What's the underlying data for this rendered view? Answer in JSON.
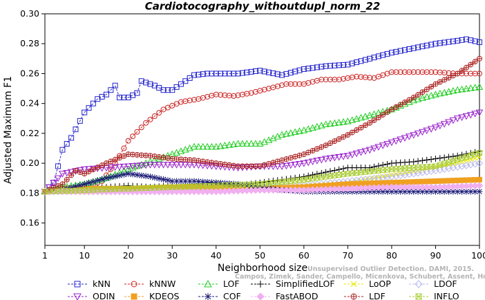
{
  "chart_data": {
    "type": "line",
    "title": "Cardiotocography_withoutdupl_norm_22",
    "xlabel": "Neighborhood size",
    "ylabel": "Adjusted Maximum F1",
    "xlim": [
      1,
      100
    ],
    "ylim": [
      0.145,
      0.3
    ],
    "xticks": [
      1,
      10,
      20,
      30,
      40,
      50,
      60,
      70,
      80,
      90,
      100
    ],
    "yticks": [
      0.16,
      0.18,
      0.2,
      0.22,
      0.24,
      0.26,
      0.28,
      0.3
    ],
    "ytick_labels": [
      "0.16",
      "0.18",
      "0.20",
      "0.22",
      "0.24",
      "0.26",
      "0.28",
      "0.30"
    ],
    "grid": false,
    "legend_position": "bottom",
    "credit_line1": "Unsupervised Outlier Detection. DAMI, 2015.",
    "credit_line2": "Campos, Zimek, Sander, Campello, Micenkova, Schubert, Assent, Houle",
    "series": [
      {
        "name": "kNN",
        "color": "#2222cc",
        "marker": "square",
        "x": [
          1,
          3,
          5,
          7,
          10,
          13,
          15,
          17,
          18,
          20,
          22,
          23,
          26,
          28,
          30,
          33,
          35,
          38,
          40,
          45,
          50,
          55,
          60,
          65,
          70,
          75,
          80,
          85,
          90,
          95,
          97,
          100
        ],
        "y": [
          0.181,
          0.187,
          0.209,
          0.217,
          0.234,
          0.243,
          0.246,
          0.252,
          0.244,
          0.244,
          0.247,
          0.255,
          0.252,
          0.249,
          0.249,
          0.255,
          0.259,
          0.26,
          0.26,
          0.26,
          0.262,
          0.259,
          0.263,
          0.265,
          0.266,
          0.27,
          0.274,
          0.277,
          0.28,
          0.282,
          0.283,
          0.281
        ]
      },
      {
        "name": "kNNW",
        "color": "#cc2222",
        "marker": "circle",
        "x": [
          1,
          5,
          10,
          14,
          17,
          20,
          24,
          28,
          32,
          36,
          40,
          44,
          48,
          52,
          56,
          60,
          64,
          68,
          72,
          76,
          80,
          85,
          90,
          95,
          100
        ],
        "y": [
          0.181,
          0.183,
          0.184,
          0.188,
          0.2,
          0.215,
          0.227,
          0.236,
          0.241,
          0.243,
          0.246,
          0.245,
          0.247,
          0.25,
          0.253,
          0.253,
          0.256,
          0.256,
          0.258,
          0.257,
          0.261,
          0.261,
          0.261,
          0.26,
          0.26
        ]
      },
      {
        "name": "LOF",
        "color": "#22cc22",
        "marker": "triangle-up",
        "x": [
          1,
          5,
          10,
          15,
          20,
          25,
          30,
          35,
          40,
          45,
          50,
          55,
          60,
          65,
          70,
          75,
          80,
          85,
          90,
          95,
          100
        ],
        "y": [
          0.181,
          0.184,
          0.186,
          0.19,
          0.196,
          0.201,
          0.206,
          0.211,
          0.211,
          0.213,
          0.213,
          0.219,
          0.222,
          0.226,
          0.228,
          0.232,
          0.236,
          0.242,
          0.246,
          0.249,
          0.251
        ]
      },
      {
        "name": "SimplifiedLOF",
        "color": "#000000",
        "marker": "plus",
        "x": [
          1,
          5,
          10,
          15,
          20,
          25,
          30,
          35,
          40,
          45,
          50,
          55,
          60,
          65,
          70,
          75,
          80,
          85,
          90,
          95,
          100
        ],
        "y": [
          0.181,
          0.182,
          0.183,
          0.184,
          0.185,
          0.184,
          0.185,
          0.186,
          0.187,
          0.185,
          0.187,
          0.189,
          0.191,
          0.194,
          0.197,
          0.197,
          0.2,
          0.201,
          0.203,
          0.205,
          0.208
        ]
      },
      {
        "name": "LoOP",
        "color": "#e8e800",
        "marker": "cross",
        "x": [
          1,
          10,
          20,
          30,
          40,
          50,
          60,
          70,
          80,
          90,
          100
        ],
        "y": [
          0.181,
          0.181,
          0.182,
          0.182,
          0.183,
          0.183,
          0.185,
          0.187,
          0.192,
          0.197,
          0.204
        ]
      },
      {
        "name": "LDOF",
        "color": "#b8b8ee",
        "marker": "diamond",
        "x": [
          1,
          10,
          20,
          30,
          40,
          50,
          60,
          70,
          80,
          90,
          100
        ],
        "y": [
          0.181,
          0.181,
          0.181,
          0.181,
          0.182,
          0.183,
          0.185,
          0.188,
          0.191,
          0.195,
          0.2
        ]
      },
      {
        "name": "ODIN",
        "color": "#9922cc",
        "marker": "triangle-down",
        "x": [
          1,
          5,
          10,
          15,
          20,
          25,
          30,
          35,
          40,
          45,
          50,
          55,
          60,
          65,
          70,
          75,
          80,
          85,
          90,
          95,
          100
        ],
        "y": [
          0.181,
          0.193,
          0.196,
          0.197,
          0.198,
          0.199,
          0.199,
          0.199,
          0.198,
          0.197,
          0.198,
          0.198,
          0.2,
          0.203,
          0.205,
          0.209,
          0.214,
          0.219,
          0.224,
          0.23,
          0.234
        ]
      },
      {
        "name": "KDEOS",
        "color": "#f0a020",
        "marker": "square-filled",
        "x": [
          1,
          10,
          20,
          30,
          40,
          50,
          60,
          70,
          80,
          90,
          100
        ],
        "y": [
          0.181,
          0.183,
          0.183,
          0.184,
          0.184,
          0.183,
          0.184,
          0.186,
          0.187,
          0.188,
          0.189
        ]
      },
      {
        "name": "COF",
        "color": "#1a1a77",
        "marker": "asterisk",
        "x": [
          1,
          5,
          10,
          15,
          20,
          25,
          30,
          35,
          40,
          45,
          50,
          55,
          60,
          65,
          70,
          75,
          80,
          85,
          90,
          95,
          100
        ],
        "y": [
          0.181,
          0.182,
          0.186,
          0.19,
          0.193,
          0.191,
          0.188,
          0.188,
          0.187,
          0.186,
          0.184,
          0.182,
          0.181,
          0.181,
          0.181,
          0.181,
          0.181,
          0.181,
          0.181,
          0.181,
          0.181
        ]
      },
      {
        "name": "FastABOD",
        "color": "#f0b0f0",
        "marker": "diamond-filled",
        "x": [
          1,
          10,
          20,
          30,
          40,
          50,
          60,
          70,
          80,
          90,
          100
        ],
        "y": [
          0.181,
          0.181,
          0.181,
          0.181,
          0.181,
          0.182,
          0.182,
          0.183,
          0.184,
          0.184,
          0.185
        ]
      },
      {
        "name": "LDF",
        "color": "#aa2222",
        "marker": "circle-plus",
        "x": [
          1,
          5,
          8,
          10,
          15,
          20,
          25,
          30,
          35,
          40,
          45,
          50,
          55,
          60,
          65,
          70,
          75,
          80,
          85,
          90,
          95,
          100
        ],
        "y": [
          0.181,
          0.186,
          0.195,
          0.193,
          0.2,
          0.206,
          0.205,
          0.203,
          0.202,
          0.2,
          0.198,
          0.198,
          0.202,
          0.206,
          0.212,
          0.219,
          0.227,
          0.236,
          0.244,
          0.253,
          0.26,
          0.27
        ]
      },
      {
        "name": "INFLO",
        "color": "#aacc33",
        "marker": "square-x",
        "x": [
          1,
          10,
          20,
          30,
          40,
          50,
          60,
          70,
          80,
          90,
          100
        ],
        "y": [
          0.181,
          0.182,
          0.183,
          0.184,
          0.185,
          0.186,
          0.189,
          0.193,
          0.196,
          0.198,
          0.207
        ]
      }
    ]
  }
}
